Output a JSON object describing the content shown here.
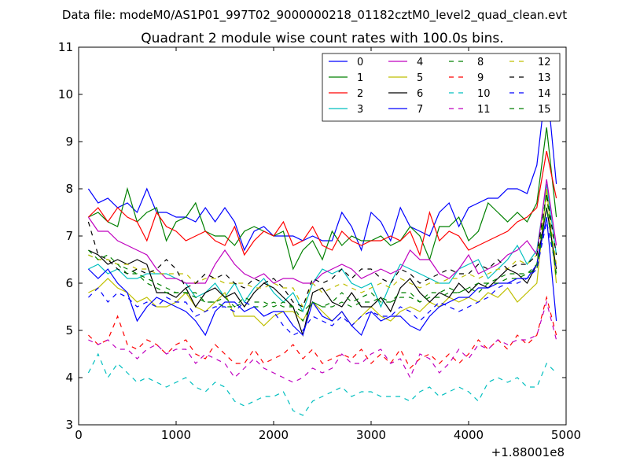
{
  "chart_data": {
    "type": "line",
    "suptitle": "Data file: modeM0/AS1P01_997T02_9000000218_01182cztM0_level2_quad_clean.evt",
    "title": "Quadrant 2 module wise count rates with 100.0s bins.",
    "xlabel": "",
    "ylabel": "",
    "x_offset_label": "+1.88001e8",
    "xlim": [
      0,
      5000
    ],
    "ylim": [
      3,
      11
    ],
    "x_ticks": [
      0,
      1000,
      2000,
      3000,
      4000,
      5000
    ],
    "y_ticks": [
      3,
      4,
      5,
      6,
      7,
      8,
      9,
      10,
      11
    ],
    "x_tick_labels": [
      "0",
      "1000",
      "2000",
      "3000",
      "4000",
      "5000"
    ],
    "y_tick_labels": [
      "3",
      "4",
      "5",
      "6",
      "7",
      "8",
      "9",
      "10",
      "11"
    ],
    "legend_position": "top-right",
    "legend_columns": 4,
    "x": [
      100,
      200,
      300,
      400,
      500,
      600,
      700,
      800,
      900,
      1000,
      1100,
      1200,
      1300,
      1400,
      1500,
      1600,
      1700,
      1800,
      1900,
      2000,
      2100,
      2200,
      2300,
      2400,
      2500,
      2600,
      2700,
      2800,
      2900,
      3000,
      3100,
      3200,
      3300,
      3400,
      3500,
      3600,
      3700,
      3800,
      3900,
      4000,
      4100,
      4200,
      4300,
      4400,
      4500,
      4600,
      4700,
      4800,
      4900
    ],
    "series": [
      {
        "name": "0",
        "color": "#0000ff",
        "dash": "solid",
        "values": [
          8.0,
          7.7,
          7.8,
          7.6,
          7.7,
          7.5,
          8.0,
          7.5,
          7.5,
          7.4,
          7.4,
          7.3,
          7.6,
          7.3,
          7.6,
          7.3,
          6.7,
          7.1,
          7.2,
          7.0,
          7.0,
          7.0,
          6.9,
          7.0,
          6.9,
          6.9,
          7.5,
          7.2,
          6.7,
          7.5,
          7.3,
          6.9,
          7.6,
          7.2,
          7.1,
          7.0,
          7.5,
          7.7,
          7.2,
          7.6,
          7.7,
          7.8,
          7.8,
          8.0,
          8.0,
          7.9,
          8.5,
          10.3,
          8.1
        ]
      },
      {
        "name": "1",
        "color": "#008000",
        "dash": "solid",
        "values": [
          7.4,
          7.5,
          7.3,
          7.2,
          8.0,
          7.3,
          7.5,
          7.6,
          6.9,
          7.3,
          7.4,
          7.7,
          7.1,
          7.0,
          7.0,
          6.8,
          7.1,
          7.2,
          7.1,
          7.0,
          7.1,
          6.3,
          6.7,
          6.9,
          6.5,
          7.1,
          6.8,
          7.0,
          6.9,
          6.9,
          7.0,
          6.8,
          6.9,
          7.2,
          7.0,
          6.5,
          7.2,
          7.2,
          7.4,
          6.9,
          7.1,
          7.7,
          7.5,
          7.3,
          7.5,
          7.3,
          7.7,
          9.3,
          7.4
        ]
      },
      {
        "name": "2",
        "color": "#ff0000",
        "dash": "solid",
        "values": [
          7.4,
          7.6,
          7.3,
          7.6,
          7.4,
          7.3,
          6.9,
          7.5,
          7.2,
          7.1,
          6.9,
          7.0,
          7.1,
          6.9,
          6.8,
          7.2,
          6.6,
          6.9,
          7.1,
          7.0,
          7.3,
          6.8,
          6.9,
          7.2,
          6.8,
          6.7,
          7.1,
          6.9,
          6.8,
          6.9,
          6.9,
          7.0,
          6.9,
          7.1,
          6.6,
          7.5,
          6.9,
          7.1,
          7.0,
          6.7,
          6.8,
          6.9,
          7.0,
          7.1,
          7.3,
          7.4,
          7.6,
          8.8,
          7.8
        ]
      },
      {
        "name": "3",
        "color": "#00bfbf",
        "dash": "solid",
        "values": [
          6.3,
          6.4,
          6.2,
          6.3,
          6.1,
          6.1,
          6.2,
          6.2,
          6.2,
          6.1,
          6.0,
          5.7,
          5.8,
          6.0,
          5.7,
          6.0,
          5.6,
          5.9,
          6.1,
          5.8,
          5.6,
          5.8,
          5.4,
          6.0,
          6.3,
          6.2,
          6.3,
          6.0,
          5.9,
          6.0,
          5.5,
          6.0,
          6.4,
          6.3,
          6.2,
          6.1,
          6.0,
          6.0,
          6.3,
          6.4,
          6.5,
          6.1,
          6.3,
          6.5,
          6.8,
          6.4,
          6.7,
          8.1,
          6.6
        ]
      },
      {
        "name": "4",
        "color": "#bf00bf",
        "dash": "solid",
        "values": [
          7.4,
          7.1,
          7.1,
          6.9,
          6.8,
          6.7,
          6.6,
          6.3,
          6.1,
          6.1,
          6.0,
          6.0,
          6.0,
          6.4,
          6.7,
          6.4,
          6.2,
          6.1,
          6.2,
          6.0,
          6.1,
          6.1,
          6.0,
          6.0,
          6.2,
          6.3,
          6.4,
          6.3,
          6.1,
          6.2,
          6.3,
          6.2,
          6.3,
          6.7,
          6.5,
          6.5,
          6.2,
          6.1,
          6.3,
          6.6,
          6.2,
          6.3,
          6.4,
          6.6,
          6.7,
          6.9,
          6.6,
          8.2,
          6.8
        ]
      },
      {
        "name": "5",
        "color": "#bfbf00",
        "dash": "solid",
        "values": [
          5.8,
          5.9,
          6.1,
          5.9,
          5.8,
          5.6,
          5.7,
          5.5,
          5.5,
          5.6,
          5.8,
          5.5,
          5.4,
          5.6,
          5.8,
          5.3,
          5.3,
          5.3,
          5.1,
          5.3,
          5.4,
          5.4,
          5.2,
          5.6,
          5.4,
          5.2,
          5.4,
          5.1,
          5.3,
          5.5,
          5.3,
          5.2,
          5.4,
          5.5,
          5.4,
          5.6,
          5.5,
          5.7,
          5.6,
          5.7,
          5.6,
          5.8,
          5.7,
          5.9,
          5.6,
          5.8,
          6.0,
          8.0,
          6.0
        ]
      },
      {
        "name": "6",
        "color": "#000000",
        "dash": "solid",
        "values": [
          6.7,
          6.6,
          6.4,
          6.5,
          6.4,
          6.5,
          6.4,
          5.8,
          5.8,
          5.7,
          5.9,
          5.5,
          5.8,
          5.9,
          5.7,
          5.8,
          5.5,
          5.8,
          6.0,
          5.9,
          5.7,
          5.5,
          4.9,
          5.8,
          5.9,
          5.6,
          5.5,
          5.8,
          5.5,
          5.5,
          5.7,
          5.4,
          5.9,
          6.1,
          5.8,
          5.6,
          5.8,
          5.7,
          6.0,
          5.8,
          6.0,
          5.9,
          6.1,
          6.3,
          6.2,
          6.0,
          6.4,
          7.6,
          6.3
        ]
      },
      {
        "name": "7",
        "color": "#0000ff",
        "dash": "solid",
        "values": [
          6.3,
          6.1,
          6.3,
          6.0,
          5.8,
          5.2,
          5.5,
          5.7,
          5.6,
          5.5,
          5.4,
          5.2,
          4.9,
          5.4,
          5.6,
          5.6,
          5.4,
          5.5,
          5.3,
          5.4,
          5.4,
          5.1,
          4.9,
          5.6,
          5.3,
          5.2,
          5.4,
          5.1,
          4.9,
          5.4,
          5.2,
          5.3,
          5.3,
          5.1,
          5.0,
          5.3,
          5.5,
          5.6,
          5.7,
          5.7,
          5.9,
          5.9,
          6.0,
          6.0,
          6.1,
          6.1,
          6.4,
          7.4,
          5.2
        ]
      },
      {
        "name": "8",
        "color": "#008000",
        "dash": "dashed",
        "values": [
          6.6,
          6.5,
          6.5,
          6.4,
          6.3,
          6.2,
          6.1,
          6.0,
          5.9,
          5.8,
          5.8,
          5.7,
          5.6,
          5.6,
          5.5,
          5.5,
          5.6,
          5.5,
          5.5,
          5.6,
          5.5,
          5.5,
          5.4,
          5.6,
          5.5,
          5.5,
          5.6,
          5.5,
          5.6,
          5.6,
          5.7,
          5.6,
          5.7,
          5.7,
          5.6,
          5.7,
          5.7,
          5.8,
          5.8,
          5.9,
          5.8,
          6.0,
          6.0,
          6.1,
          6.1,
          6.2,
          6.3,
          7.6,
          6.2
        ]
      },
      {
        "name": "9",
        "color": "#ff0000",
        "dash": "dashed",
        "values": [
          4.9,
          4.7,
          4.8,
          5.3,
          4.7,
          4.6,
          4.8,
          4.7,
          4.5,
          4.7,
          4.8,
          4.5,
          4.4,
          4.7,
          4.5,
          4.3,
          4.3,
          4.6,
          4.3,
          4.4,
          4.5,
          4.7,
          4.4,
          4.6,
          4.3,
          4.4,
          4.5,
          4.4,
          4.6,
          4.3,
          4.5,
          4.3,
          4.6,
          4.2,
          4.4,
          4.5,
          4.3,
          4.5,
          4.3,
          4.5,
          4.8,
          4.6,
          4.8,
          4.6,
          4.9,
          4.7,
          4.9,
          5.7,
          4.9
        ]
      },
      {
        "name": "10",
        "color": "#00bfbf",
        "dash": "dashed",
        "values": [
          4.1,
          4.5,
          4.0,
          4.3,
          4.1,
          3.9,
          4.0,
          3.9,
          3.8,
          3.9,
          4.0,
          3.8,
          3.7,
          3.9,
          3.8,
          3.5,
          3.4,
          3.5,
          3.6,
          3.6,
          3.7,
          3.3,
          3.2,
          3.5,
          3.6,
          3.7,
          3.8,
          3.6,
          3.7,
          3.7,
          3.6,
          3.6,
          3.6,
          3.5,
          3.7,
          3.8,
          3.6,
          3.7,
          3.8,
          3.7,
          3.5,
          3.9,
          4.0,
          3.9,
          4.0,
          3.8,
          3.8,
          4.3,
          4.1
        ]
      },
      {
        "name": "11",
        "color": "#bf00bf",
        "dash": "dashed",
        "values": [
          4.8,
          4.7,
          4.8,
          4.6,
          4.6,
          4.4,
          4.6,
          4.7,
          4.5,
          4.6,
          4.6,
          4.3,
          4.5,
          4.4,
          4.3,
          4.0,
          4.2,
          4.4,
          4.2,
          4.1,
          4.0,
          3.9,
          4.0,
          4.2,
          4.1,
          4.2,
          4.5,
          4.3,
          4.3,
          4.5,
          4.6,
          4.3,
          4.4,
          4.0,
          4.5,
          4.4,
          4.1,
          4.3,
          4.6,
          4.4,
          4.7,
          4.6,
          4.8,
          4.7,
          4.8,
          4.8,
          4.9,
          5.6,
          4.8
        ]
      },
      {
        "name": "12",
        "color": "#bfbf00",
        "dash": "dashed",
        "values": [
          6.6,
          6.5,
          6.5,
          6.4,
          6.4,
          6.3,
          6.3,
          6.2,
          6.2,
          6.2,
          6.2,
          6.0,
          6.1,
          6.1,
          6.0,
          6.0,
          6.0,
          5.9,
          5.9,
          6.0,
          5.9,
          5.9,
          5.5,
          6.0,
          5.8,
          5.9,
          6.0,
          5.9,
          5.8,
          5.9,
          6.0,
          5.9,
          6.1,
          6.0,
          5.9,
          6.0,
          6.0,
          6.1,
          6.1,
          6.2,
          6.1,
          6.2,
          6.3,
          6.3,
          6.5,
          6.4,
          6.6,
          7.8,
          6.4
        ]
      },
      {
        "name": "13",
        "color": "#000000",
        "dash": "dashed",
        "values": [
          7.3,
          6.6,
          6.5,
          6.3,
          6.2,
          6.3,
          6.2,
          6.3,
          6.5,
          6.3,
          5.9,
          6.0,
          6.2,
          6.1,
          6.2,
          6.0,
          5.9,
          6.1,
          6.0,
          6.1,
          5.9,
          5.6,
          5.5,
          6.1,
          6.0,
          6.1,
          6.3,
          6.1,
          6.3,
          6.3,
          6.1,
          6.0,
          6.3,
          6.2,
          6.0,
          6.1,
          6.2,
          6.3,
          6.2,
          6.2,
          6.4,
          6.3,
          6.5,
          6.3,
          6.4,
          6.4,
          6.6,
          7.9,
          6.6
        ]
      },
      {
        "name": "14",
        "color": "#0000ff",
        "dash": "dashed",
        "values": [
          5.7,
          5.9,
          5.6,
          5.8,
          5.7,
          5.5,
          5.6,
          5.5,
          5.7,
          5.6,
          5.6,
          5.3,
          5.4,
          5.5,
          5.5,
          5.4,
          5.6,
          5.5,
          5.3,
          5.4,
          5.1,
          4.9,
          5.0,
          5.3,
          5.2,
          5.1,
          5.3,
          5.1,
          5.3,
          5.4,
          5.3,
          5.3,
          5.5,
          5.4,
          5.2,
          5.4,
          5.6,
          5.5,
          5.4,
          5.5,
          5.6,
          5.7,
          5.9,
          6.0,
          6.0,
          6.1,
          6.3,
          7.3,
          6.3
        ]
      },
      {
        "name": "15",
        "color": "#008000",
        "dash": "dashed",
        "values": [
          6.7,
          6.5,
          6.6,
          6.4,
          6.2,
          6.2,
          6.0,
          5.9,
          5.8,
          5.8,
          5.8,
          5.8,
          5.6,
          5.6,
          5.7,
          5.5,
          5.7,
          5.6,
          5.6,
          5.5,
          5.6,
          5.5,
          5.2,
          5.6,
          5.5,
          5.6,
          5.8,
          5.6,
          5.7,
          5.8,
          5.6,
          5.6,
          5.8,
          5.8,
          5.6,
          5.8,
          5.8,
          5.9,
          5.8,
          5.9,
          6.0,
          6.0,
          6.1,
          6.2,
          6.2,
          6.2,
          6.4,
          7.9,
          6.1
        ]
      }
    ]
  }
}
